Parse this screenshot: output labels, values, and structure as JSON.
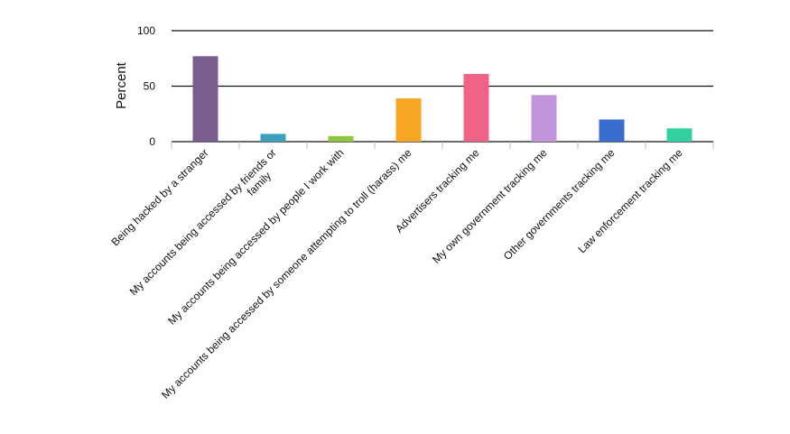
{
  "chart_data": {
    "type": "bar",
    "ylabel": "Percent",
    "ylim": [
      0,
      100
    ],
    "yticks": [
      0,
      50,
      100
    ],
    "grid": true,
    "categories": [
      [
        "Being hacked by a stranger"
      ],
      [
        "My accounts being accessed by friends or",
        "family"
      ],
      [
        "My accounts being accessed by people I work with"
      ],
      [
        "My accounts being accessed by someone attempting to troll (harass) me"
      ],
      [
        "Advertisers tracking me"
      ],
      [
        "My own government tracking me"
      ],
      [
        "Other governments tracking me"
      ],
      [
        "Law enforcement tracking me"
      ]
    ],
    "values": [
      77,
      7,
      5,
      39,
      61,
      42,
      20,
      12
    ],
    "colors": [
      "#7b5e90",
      "#3c9fbd",
      "#8dc63f",
      "#f5a623",
      "#f06386",
      "#c194dc",
      "#3b6ccf",
      "#33d19f"
    ]
  }
}
